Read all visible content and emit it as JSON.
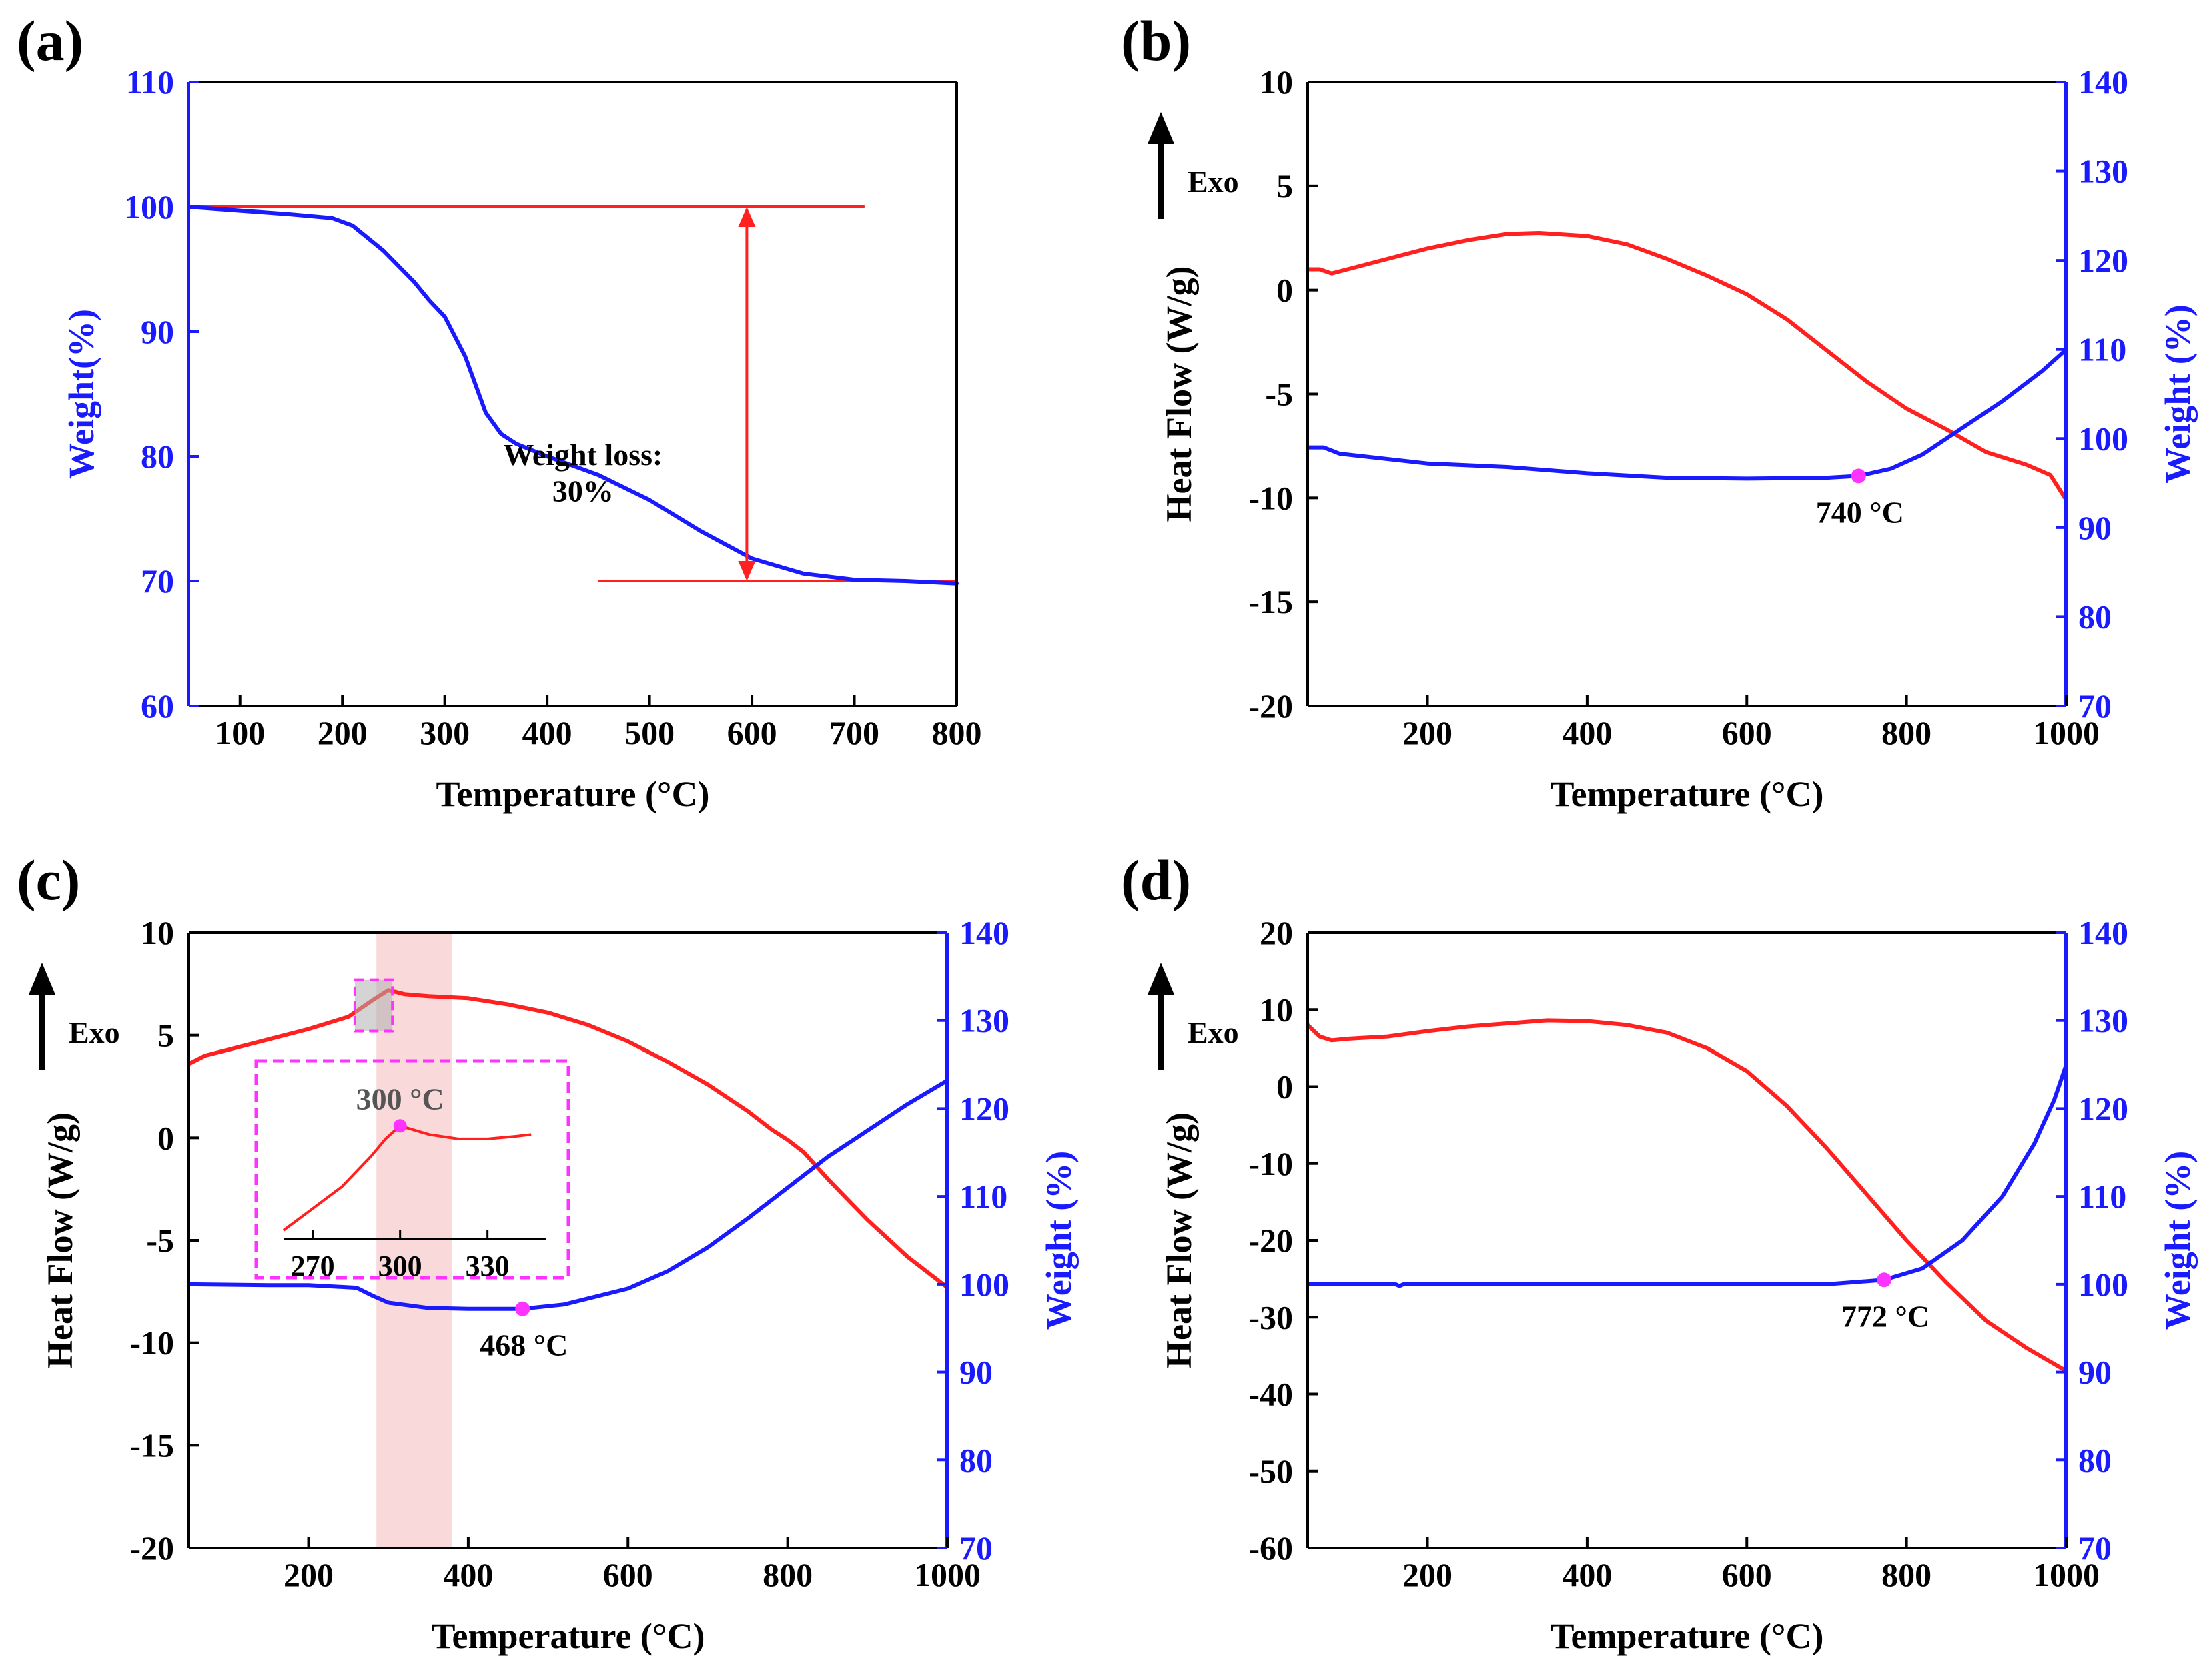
{
  "colors": {
    "red": "#ff2020",
    "blue": "#1a1aff",
    "magenta": "#ff33ff",
    "shade": "#f7c9c9",
    "black": "#000000"
  },
  "chart_data": [
    {
      "id": "a",
      "panel_label": "(a)",
      "type": "line",
      "xlabel": "Temperature (°C)",
      "ylabel": "Weight(%)",
      "xlim": [
        50,
        800
      ],
      "ylim": [
        60,
        110
      ],
      "xticks": [
        100,
        200,
        300,
        400,
        500,
        600,
        700,
        800
      ],
      "yticks": [
        60,
        70,
        80,
        90,
        100,
        110
      ],
      "series": [
        {
          "name": "Weight",
          "axis": "left",
          "color": "blue",
          "x": [
            50,
            100,
            150,
            190,
            210,
            240,
            270,
            285,
            300,
            320,
            340,
            355,
            370,
            400,
            450,
            500,
            550,
            600,
            650,
            700,
            750,
            800
          ],
          "y": [
            100,
            99.7,
            99.4,
            99.1,
            98.5,
            96.5,
            94,
            92.5,
            91.2,
            88,
            83.5,
            81.8,
            81,
            80,
            78.5,
            76.5,
            74,
            71.8,
            70.6,
            70.1,
            70,
            69.8
          ]
        }
      ],
      "guides": [
        {
          "color": "red",
          "x": [
            50,
            710
          ],
          "y": [
            100,
            100
          ]
        },
        {
          "color": "red",
          "x": [
            450,
            800
          ],
          "y": [
            70,
            70
          ]
        }
      ],
      "arrow": {
        "color": "red",
        "x": 595,
        "y_from": 70,
        "y_to": 100
      },
      "annotations": [
        {
          "text_lines": [
            "Weight loss:",
            "30%"
          ],
          "x": 435,
          "y": [
            79.3,
            76.4
          ]
        }
      ]
    },
    {
      "id": "b",
      "panel_label": "(b)",
      "type": "line",
      "xlabel": "Temperature (°C)",
      "ylabel": "Heat Flow (W/g)",
      "ylabel_right": "Weight (%)",
      "exo_label": "Exo",
      "xlim": [
        50,
        1000
      ],
      "ylim": [
        -20,
        10
      ],
      "ylim_right": [
        70,
        140
      ],
      "xticks": [
        200,
        400,
        600,
        800,
        1000
      ],
      "yticks": [
        -20,
        -15,
        -10,
        -5,
        0,
        5,
        10
      ],
      "yticks_right": [
        70,
        80,
        90,
        100,
        110,
        120,
        130,
        140
      ],
      "series": [
        {
          "name": "Heat Flow",
          "axis": "left",
          "color": "red",
          "x": [
            50,
            65,
            80,
            100,
            150,
            200,
            250,
            300,
            340,
            400,
            450,
            500,
            550,
            600,
            650,
            700,
            750,
            800,
            850,
            900,
            950,
            980,
            1000
          ],
          "y": [
            1.0,
            1.0,
            0.8,
            1.0,
            1.5,
            2.0,
            2.4,
            2.7,
            2.75,
            2.6,
            2.2,
            1.5,
            0.7,
            -0.2,
            -1.4,
            -2.9,
            -4.4,
            -5.7,
            -6.7,
            -7.8,
            -8.4,
            -8.9,
            -10.1
          ]
        },
        {
          "name": "Weight",
          "axis": "right",
          "color": "blue",
          "x": [
            50,
            70,
            90,
            120,
            200,
            300,
            400,
            500,
            600,
            700,
            740,
            780,
            820,
            870,
            920,
            970,
            1000
          ],
          "y": [
            99,
            99,
            98.3,
            98,
            97.2,
            96.8,
            96.1,
            95.6,
            95.5,
            95.6,
            95.8,
            96.6,
            98.2,
            101.2,
            104.2,
            107.6,
            110
          ]
        }
      ],
      "markers": [
        {
          "x": 740,
          "y": 95.8,
          "axis": "right",
          "label": "740 °C"
        }
      ]
    },
    {
      "id": "c",
      "panel_label": "(c)",
      "type": "line",
      "xlabel": "Temperature (°C)",
      "ylabel": "Heat Flow (W/g)",
      "ylabel_right": "Weight (%)",
      "exo_label": "Exo",
      "xlim": [
        50,
        1000
      ],
      "ylim": [
        -20,
        10
      ],
      "ylim_right": [
        70,
        140
      ],
      "xticks": [
        200,
        400,
        600,
        800,
        1000
      ],
      "yticks": [
        -20,
        -15,
        -10,
        -5,
        0,
        5,
        10
      ],
      "yticks_right": [
        70,
        80,
        90,
        100,
        110,
        120,
        130,
        140
      ],
      "shaded_range": [
        285,
        380
      ],
      "series": [
        {
          "name": "Heat Flow",
          "axis": "left",
          "color": "red",
          "x": [
            50,
            70,
            100,
            150,
            200,
            250,
            280,
            300,
            320,
            350,
            400,
            450,
            500,
            550,
            600,
            650,
            700,
            750,
            780,
            800,
            820,
            850,
            900,
            950,
            1000
          ],
          "y": [
            3.6,
            4.0,
            4.3,
            4.8,
            5.3,
            5.9,
            6.7,
            7.2,
            7.0,
            6.9,
            6.8,
            6.5,
            6.1,
            5.5,
            4.7,
            3.7,
            2.6,
            1.3,
            0.4,
            -0.1,
            -0.7,
            -2.0,
            -4.0,
            -5.8,
            -7.3
          ]
        },
        {
          "name": "Weight",
          "axis": "right",
          "color": "blue",
          "x": [
            50,
            150,
            200,
            260,
            280,
            300,
            350,
            400,
            468,
            520,
            600,
            650,
            700,
            750,
            800,
            850,
            900,
            950,
            1000
          ],
          "y": [
            100,
            99.9,
            99.9,
            99.6,
            98.7,
            97.9,
            97.3,
            97.2,
            97.2,
            97.7,
            99.5,
            101.5,
            104.2,
            107.5,
            111.0,
            114.5,
            117.5,
            120.5,
            123.2
          ]
        }
      ],
      "markers": [
        {
          "x": 468,
          "y": 97.2,
          "axis": "right",
          "label": "468 °C"
        }
      ],
      "zoom_box": {
        "x": [
          258,
          305
        ],
        "y": [
          5.2,
          7.7
        ]
      },
      "inset": {
        "xlim": [
          260,
          350
        ],
        "ylim": [
          6.2,
          7.7
        ],
        "xticks": [
          270,
          300,
          330
        ],
        "series": [
          {
            "name": "Heat Flow",
            "color": "red",
            "x": [
              260,
              270,
              280,
              290,
              295,
              300,
              305,
              310,
              320,
              330,
              340,
              345
            ],
            "y": [
              6.0,
              6.25,
              6.5,
              6.85,
              7.05,
              7.2,
              7.15,
              7.1,
              7.05,
              7.05,
              7.08,
              7.1
            ]
          }
        ],
        "marker": {
          "x": 300,
          "y": 7.2,
          "label": "300 °C"
        }
      }
    },
    {
      "id": "d",
      "panel_label": "(d)",
      "type": "line",
      "xlabel": "Temperature (°C)",
      "ylabel": "Heat Flow (W/g)",
      "ylabel_right": "Weight (%)",
      "exo_label": "Exo",
      "xlim": [
        50,
        1000
      ],
      "ylim": [
        -60,
        20
      ],
      "ylim_right": [
        70,
        140
      ],
      "xticks": [
        200,
        400,
        600,
        800,
        1000
      ],
      "yticks": [
        -60,
        -50,
        -40,
        -30,
        -20,
        -10,
        0,
        10,
        20
      ],
      "yticks_right": [
        70,
        80,
        90,
        100,
        110,
        120,
        130,
        140
      ],
      "series": [
        {
          "name": "Heat Flow",
          "axis": "left",
          "color": "red",
          "x": [
            50,
            65,
            80,
            100,
            150,
            200,
            250,
            300,
            350,
            400,
            450,
            500,
            550,
            600,
            650,
            700,
            750,
            800,
            850,
            900,
            950,
            1000
          ],
          "y": [
            8,
            6.5,
            6,
            6.2,
            6.5,
            7.2,
            7.8,
            8.2,
            8.6,
            8.5,
            8.0,
            7.0,
            5.0,
            2.0,
            -2.5,
            -8,
            -14,
            -20,
            -25.5,
            -30.5,
            -34,
            -37
          ]
        },
        {
          "name": "Weight",
          "axis": "right",
          "color": "blue",
          "x": [
            50,
            100,
            160,
            165,
            170,
            300,
            500,
            700,
            772,
            820,
            870,
            920,
            960,
            985,
            1000
          ],
          "y": [
            100,
            100,
            100,
            99.8,
            100,
            100,
            100,
            100,
            100.5,
            101.8,
            105,
            110,
            116,
            121,
            125
          ]
        }
      ],
      "markers": [
        {
          "x": 772,
          "y": 100.5,
          "axis": "right",
          "label": "772 °C"
        }
      ]
    }
  ]
}
